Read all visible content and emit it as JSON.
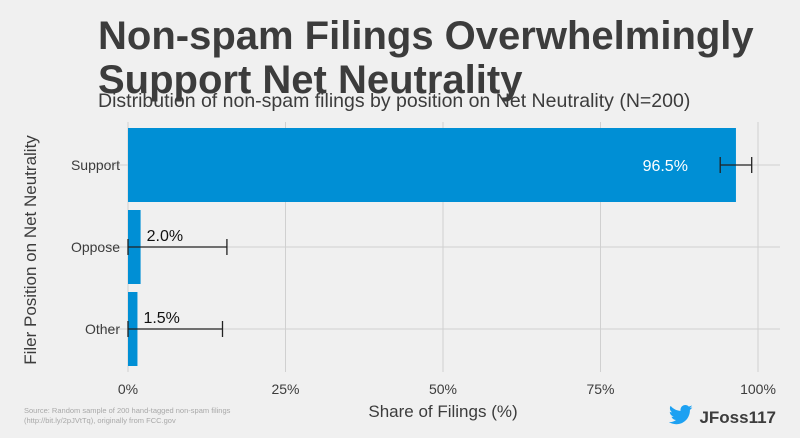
{
  "header": {
    "title": "Non-spam Filings Overwhelmingly Support Net Neutrality",
    "subtitle": "Distribution of non-spam filings by position on Net Neutrality (N=200)"
  },
  "chart_data": {
    "type": "bar",
    "orientation": "horizontal",
    "categories": [
      "Support",
      "Oppose",
      "Other"
    ],
    "values": [
      96.5,
      2.0,
      1.5
    ],
    "value_labels": [
      "96.5%",
      "2.0%",
      "1.5%"
    ],
    "error_bars": [
      [
        94,
        99
      ],
      [
        0,
        15.7
      ],
      [
        0,
        15
      ]
    ],
    "xlim": [
      0,
      100
    ],
    "xticks": [
      0,
      25,
      50,
      75,
      100
    ],
    "xtick_labels": [
      "0%",
      "25%",
      "50%",
      "75%",
      "100%"
    ],
    "xlabel": "Share of Filings (%)",
    "ylabel": "Filer Position on Net Neutrality",
    "bar_color": "#008fd5",
    "grid": true
  },
  "footer": {
    "source": "Source: Random sample of 200 hand-tagged non-spam filings (http://bit.ly/2pJVtTq), originally from FCC.gov",
    "handle": "JFoss117",
    "handle_icon": "twitter-bird-icon",
    "icon_color": "#1da1f2"
  }
}
